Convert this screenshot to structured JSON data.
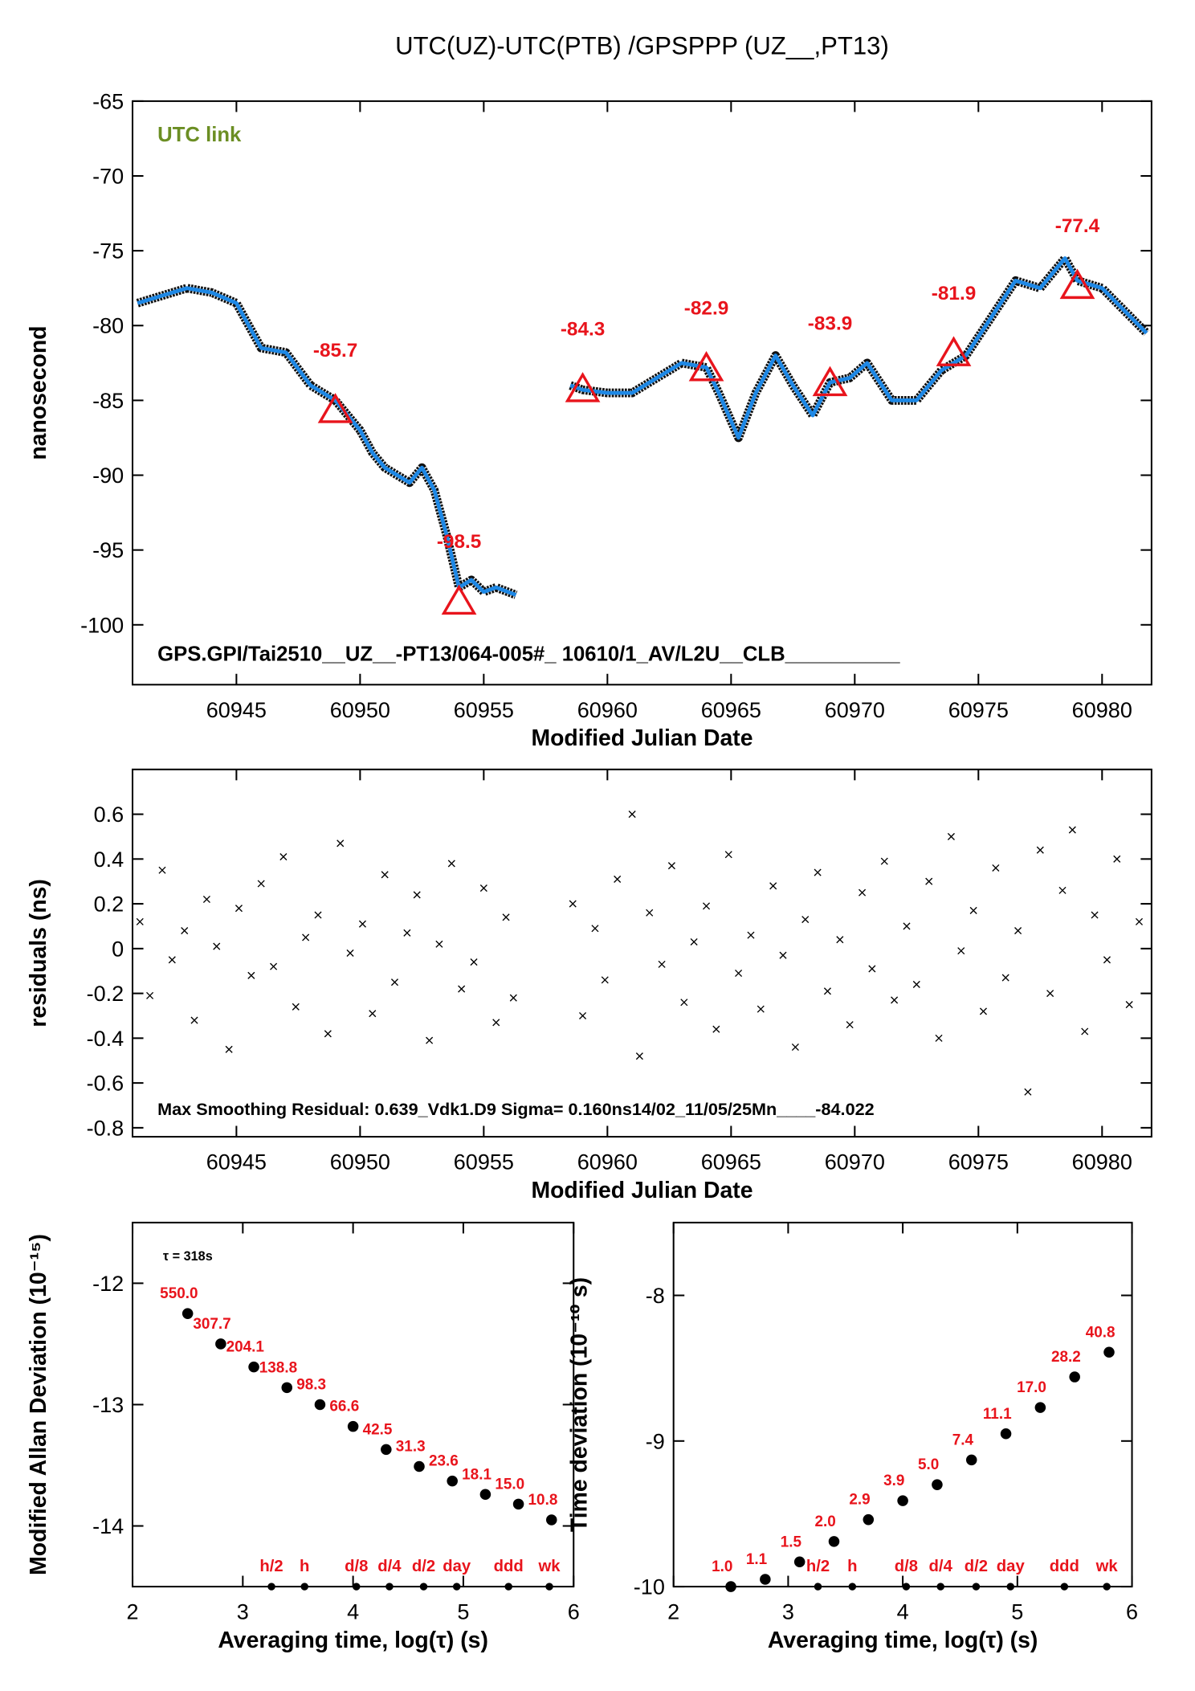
{
  "chart_data": [
    {
      "type": "line",
      "title": "UTC(UZ)-UTC(PTB)  /GPSPPP  (UZ__,PT13)",
      "xlabel": "Modified Julian Date",
      "ylabel": "nanosecond",
      "annotations": [
        "UTC link",
        "GPS.GPI/Tai2510__UZ__-PT13/064-005#_  10610/1_AV/L2U__CLB__________"
      ],
      "xlim": [
        60940.8,
        60982
      ],
      "ylim": [
        -104,
        -65
      ],
      "xticks": [
        60945,
        60950,
        60955,
        60960,
        60965,
        60970,
        60975,
        60980
      ],
      "yticks": [
        -100,
        -95,
        -90,
        -85,
        -80,
        -75,
        -70,
        -65
      ],
      "series": [
        {
          "color": "#1e88e5",
          "x": [
            60941,
            60942,
            60943,
            60944,
            60945,
            60946,
            60947,
            60948,
            60949,
            60950,
            60950.5,
            60951,
            60952,
            60952.5,
            60953,
            60953.5,
            60954,
            60954.5,
            60955,
            60955.5,
            60956.3,
            60957.4,
            60958.5,
            60959,
            60960,
            60961,
            60962,
            60963,
            60964,
            60964.5,
            60965.3,
            60966,
            60966.8,
            60967.5,
            60968.3,
            60969,
            60969.8,
            60970.5,
            60971.5,
            60972.5,
            60973.5,
            60974.5,
            60975.5,
            60976.5,
            60977.5,
            60978.5,
            60979,
            60980,
            60981.8
          ],
          "values": [
            -78.5,
            -78.0,
            -77.5,
            -77.8,
            -78.5,
            -81.5,
            -81.8,
            -84.0,
            -85.0,
            -87.0,
            -88.5,
            -89.5,
            -90.5,
            -89.5,
            -91.0,
            -94.0,
            -97.5,
            -97.0,
            -97.8,
            -97.5,
            -98.0,
            null,
            -84.0,
            -84.3,
            -84.5,
            -84.5,
            -83.5,
            -82.5,
            -82.8,
            -84.5,
            -87.5,
            -84.5,
            -82.0,
            -84.0,
            -86.0,
            -83.8,
            -83.5,
            -82.5,
            -85.0,
            -85.0,
            -83.0,
            -82.0,
            -79.5,
            -77.0,
            -77.5,
            -75.5,
            -77.0,
            -77.5,
            -80.5
          ]
        }
      ],
      "triangles": {
        "color": "#e8141c",
        "x": [
          60949,
          60954,
          60959,
          60964,
          60969,
          60974,
          60979
        ],
        "values": [
          -85.7,
          -98.5,
          -84.3,
          -82.9,
          -83.9,
          -81.9,
          -77.4
        ]
      }
    },
    {
      "type": "scatter",
      "marker": "x",
      "xlabel": "Modified Julian Date",
      "ylabel": "residuals (ns)",
      "annotations": [
        "Max Smoothing Residual: 0.639_Vdk1.D9  Sigma= 0.160ns14/02_11/05/25Mn____-84.022"
      ],
      "xlim": [
        60940.8,
        60982
      ],
      "ylim": [
        -0.84,
        0.8
      ],
      "xticks": [
        60945,
        60950,
        60955,
        60960,
        60965,
        60970,
        60975,
        60980
      ],
      "yticks": [
        -0.8,
        -0.6,
        -0.4,
        -0.2,
        0.0,
        0.2,
        0.4,
        0.6
      ],
      "x": [
        60941.1,
        60941.5,
        60942.0,
        60942.4,
        60942.9,
        60943.3,
        60943.8,
        60944.2,
        60944.7,
        60945.1,
        60945.6,
        60946.0,
        60946.5,
        60946.9,
        60947.4,
        60947.8,
        60948.3,
        60948.7,
        60949.2,
        60949.6,
        60950.1,
        60950.5,
        60951.0,
        60951.4,
        60951.9,
        60952.3,
        60952.8,
        60953.2,
        60953.7,
        60954.1,
        60954.6,
        60955.0,
        60955.5,
        60955.9,
        60956.2,
        60958.6,
        60959.0,
        60959.5,
        60959.9,
        60960.4,
        60961.0,
        60961.3,
        60961.7,
        60962.2,
        60962.6,
        60963.1,
        60963.5,
        60964.0,
        60964.4,
        60964.9,
        60965.3,
        60965.8,
        60966.2,
        60966.7,
        60967.1,
        60967.6,
        60968.0,
        60968.5,
        60968.9,
        60969.4,
        60969.8,
        60970.3,
        60970.7,
        60971.2,
        60971.6,
        60972.1,
        60972.5,
        60973.0,
        60973.4,
        60973.9,
        60974.3,
        60974.8,
        60975.2,
        60975.7,
        60976.1,
        60976.6,
        60977.0,
        60977.5,
        60977.9,
        60978.4,
        60978.8,
        60979.3,
        60979.7,
        60980.2,
        60980.6,
        60981.1,
        60981.5
      ],
      "values": [
        0.12,
        -0.21,
        0.35,
        -0.05,
        0.08,
        -0.32,
        0.22,
        0.01,
        -0.45,
        0.18,
        -0.12,
        0.29,
        -0.08,
        0.41,
        -0.26,
        0.05,
        0.15,
        -0.38,
        0.47,
        -0.02,
        0.11,
        -0.29,
        0.33,
        -0.15,
        0.07,
        0.24,
        -0.41,
        0.02,
        0.38,
        -0.18,
        -0.06,
        0.27,
        -0.33,
        0.14,
        -0.22,
        0.2,
        -0.3,
        0.09,
        -0.14,
        0.31,
        0.6,
        -0.48,
        0.16,
        -0.07,
        0.37,
        -0.24,
        0.03,
        0.19,
        -0.36,
        0.42,
        -0.11,
        0.06,
        -0.27,
        0.28,
        -0.03,
        -0.44,
        0.13,
        0.34,
        -0.19,
        0.04,
        -0.34,
        0.25,
        -0.09,
        0.39,
        -0.23,
        0.1,
        -0.16,
        0.3,
        -0.4,
        0.5,
        -0.01,
        0.17,
        -0.28,
        0.36,
        -0.13,
        0.08,
        -0.64,
        0.44,
        -0.2,
        0.26,
        0.53,
        -0.37,
        0.15,
        -0.05,
        0.4,
        -0.25,
        0.12
      ]
    },
    {
      "type": "scatter",
      "marker": "circle",
      "xlabel": "Averaging time, log(τ) (s)",
      "ylabel": "Modified Allan Deviation (10⁻¹⁵)",
      "annotations": [
        "τ = 318s"
      ],
      "xlim": [
        2,
        6
      ],
      "ylim": [
        -14.5,
        -11.5
      ],
      "xticks": [
        2,
        3,
        4,
        5,
        6
      ],
      "yticks": [
        -14,
        -13,
        -12
      ],
      "x": [
        2.5,
        2.8,
        3.1,
        3.4,
        3.7,
        4.0,
        4.3,
        4.6,
        4.9,
        5.2,
        5.5,
        5.8
      ],
      "values": [
        -12.25,
        -12.5,
        -12.69,
        -12.86,
        -13.0,
        -13.18,
        -13.37,
        -13.51,
        -13.63,
        -13.74,
        -13.82,
        -13.95
      ],
      "point_labels": [
        "550.0",
        "307.7",
        "204.1",
        "138.8",
        "98.3",
        "66.6",
        "42.5",
        "31.3",
        "23.6",
        "18.1",
        "15.0",
        "10.8"
      ],
      "label_color": "#e8141c",
      "markers": {
        "labels": [
          "h/2",
          "h",
          "d/8",
          "d/4",
          "d/2",
          "day",
          "ddd",
          "wk"
        ],
        "x": [
          3.26,
          3.56,
          4.03,
          4.33,
          4.64,
          4.94,
          5.41,
          5.78
        ]
      }
    },
    {
      "type": "scatter",
      "marker": "circle",
      "xlabel": "Averaging time, log(τ) (s)",
      "ylabel": "Time deviation (10⁻¹⁰ s)",
      "xlim": [
        2,
        6
      ],
      "ylim": [
        -10,
        -7.5
      ],
      "xticks": [
        2,
        3,
        4,
        5,
        6
      ],
      "yticks": [
        -10,
        -9,
        -8
      ],
      "x": [
        2.5,
        2.8,
        3.1,
        3.4,
        3.7,
        4.0,
        4.3,
        4.6,
        4.9,
        5.2,
        5.5,
        5.8
      ],
      "values": [
        -10.0,
        -9.95,
        -9.83,
        -9.69,
        -9.54,
        -9.41,
        -9.3,
        -9.13,
        -8.95,
        -8.77,
        -8.56,
        -8.39
      ],
      "point_labels": [
        "1.0",
        "1.1",
        "1.5",
        "2.0",
        "2.9",
        "3.9",
        "5.0",
        "7.4",
        "11.1",
        "17.0",
        "28.2",
        "40.8"
      ],
      "label_color": "#e8141c",
      "markers": {
        "labels": [
          "h/2",
          "h",
          "d/8",
          "d/4",
          "d/2",
          "day",
          "ddd",
          "wk"
        ],
        "x": [
          3.26,
          3.56,
          4.03,
          4.33,
          4.64,
          4.94,
          5.41,
          5.78
        ]
      }
    }
  ]
}
